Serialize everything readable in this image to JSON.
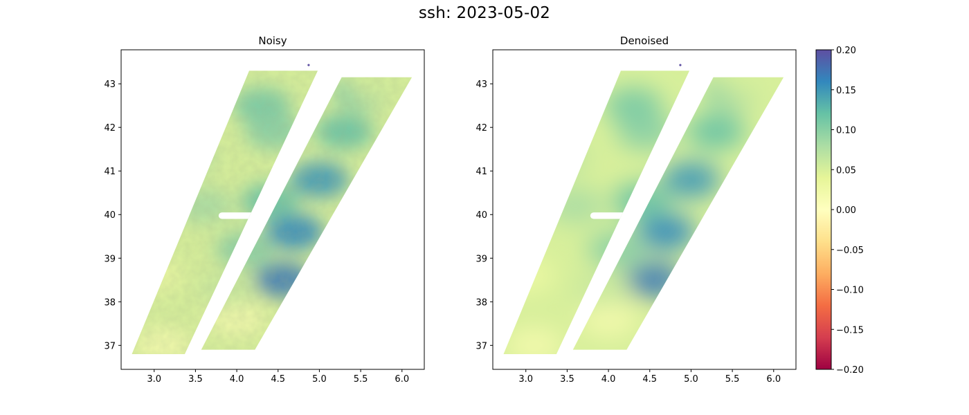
{
  "figure": {
    "suptitle": "ssh: 2023-05-02"
  },
  "colors": {
    "colormap": "Spectral",
    "marker": "#5e4fa2"
  },
  "chart_data": [
    {
      "type": "heatmap",
      "title": "Noisy",
      "xlabel": "",
      "ylabel": "",
      "xlim": [
        2.6,
        6.27
      ],
      "ylim": [
        36.45,
        43.78
      ],
      "xticks": [
        3.0,
        3.5,
        4.0,
        4.5,
        5.0,
        5.5,
        6.0
      ],
      "xtick_labels": [
        "3.0",
        "3.5",
        "4.0",
        "4.5",
        "5.0",
        "5.5",
        "6.0"
      ],
      "yticks": [
        37,
        38,
        39,
        40,
        41,
        42,
        43
      ],
      "ytick_labels": [
        "37",
        "38",
        "39",
        "40",
        "41",
        "42",
        "43"
      ],
      "grid": false,
      "noisy": true,
      "swaths": [
        {
          "name": "left-swath",
          "x0_bottom": 2.73,
          "x1_bottom": 3.37,
          "x0_top": 4.15,
          "x1_top": 4.98,
          "y_bottom": 36.8,
          "y_top": 43.3
        },
        {
          "name": "right-swath",
          "x0_bottom": 3.57,
          "x1_bottom": 4.22,
          "x0_top": 5.27,
          "x1_top": 6.12,
          "y_bottom": 36.9,
          "y_top": 43.15
        }
      ],
      "gap_region": {
        "lon": [
          3.78,
          4.22
        ],
        "lat": [
          39.9,
          40.05
        ]
      },
      "marker_point": {
        "lon": 4.87,
        "lat": 43.43,
        "value": 0.2
      },
      "features": [
        {
          "lon": 5.0,
          "lat": 40.8,
          "value": 0.15
        },
        {
          "lon": 4.7,
          "lat": 39.6,
          "value": 0.16
        },
        {
          "lon": 4.55,
          "lat": 38.5,
          "value": 0.17
        },
        {
          "lon": 5.3,
          "lat": 41.9,
          "value": 0.12
        },
        {
          "lon": 4.3,
          "lat": 42.5,
          "value": 0.11
        },
        {
          "lon": 4.45,
          "lat": 41.9,
          "value": 0.1
        },
        {
          "lon": 5.5,
          "lat": 42.8,
          "value": 0.1
        },
        {
          "lon": 4.1,
          "lat": 39.2,
          "value": 0.1
        },
        {
          "lon": 3.6,
          "lat": 40.2,
          "value": 0.08
        },
        {
          "lon": 3.4,
          "lat": 41.3,
          "value": 0.07
        },
        {
          "lon": 3.0,
          "lat": 38.6,
          "value": 0.03
        },
        {
          "lon": 3.1,
          "lat": 37.0,
          "value": 0.02
        },
        {
          "lon": 4.0,
          "lat": 37.6,
          "value": 0.02
        },
        {
          "lon": 3.9,
          "lat": 38.3,
          "value": 0.06
        },
        {
          "lon": 4.4,
          "lat": 40.3,
          "value": 0.12
        },
        {
          "lon": 5.7,
          "lat": 43.0,
          "value": 0.05
        }
      ]
    },
    {
      "type": "heatmap",
      "title": "Denoised",
      "xlabel": "",
      "ylabel": "",
      "xlim": [
        2.6,
        6.27
      ],
      "ylim": [
        36.45,
        43.78
      ],
      "xticks": [
        3.0,
        3.5,
        4.0,
        4.5,
        5.0,
        5.5,
        6.0
      ],
      "xtick_labels": [
        "3.0",
        "3.5",
        "4.0",
        "4.5",
        "5.0",
        "5.5",
        "6.0"
      ],
      "yticks": [
        37,
        38,
        39,
        40,
        41,
        42,
        43
      ],
      "ytick_labels": [
        "37",
        "38",
        "39",
        "40",
        "41",
        "42",
        "43"
      ],
      "grid": false,
      "noisy": false,
      "swaths": [
        {
          "name": "left-swath",
          "x0_bottom": 2.73,
          "x1_bottom": 3.37,
          "x0_top": 4.15,
          "x1_top": 4.98,
          "y_bottom": 36.8,
          "y_top": 43.3
        },
        {
          "name": "right-swath",
          "x0_bottom": 3.57,
          "x1_bottom": 4.22,
          "x0_top": 5.27,
          "x1_top": 6.12,
          "y_bottom": 36.9,
          "y_top": 43.15
        }
      ],
      "gap_region": {
        "lon": [
          3.78,
          4.22
        ],
        "lat": [
          39.9,
          40.05
        ]
      },
      "marker_point": {
        "lon": 4.87,
        "lat": 43.43,
        "value": 0.2
      },
      "features": [
        {
          "lon": 5.0,
          "lat": 40.8,
          "value": 0.15
        },
        {
          "lon": 4.7,
          "lat": 39.6,
          "value": 0.16
        },
        {
          "lon": 4.55,
          "lat": 38.5,
          "value": 0.17
        },
        {
          "lon": 5.3,
          "lat": 41.9,
          "value": 0.12
        },
        {
          "lon": 4.3,
          "lat": 42.5,
          "value": 0.11
        },
        {
          "lon": 4.45,
          "lat": 41.9,
          "value": 0.1
        },
        {
          "lon": 5.5,
          "lat": 42.8,
          "value": 0.1
        },
        {
          "lon": 4.1,
          "lat": 39.2,
          "value": 0.1
        },
        {
          "lon": 3.6,
          "lat": 40.2,
          "value": 0.08
        },
        {
          "lon": 3.4,
          "lat": 41.3,
          "value": 0.07
        },
        {
          "lon": 3.0,
          "lat": 38.6,
          "value": 0.03
        },
        {
          "lon": 3.1,
          "lat": 37.0,
          "value": 0.02
        },
        {
          "lon": 4.0,
          "lat": 37.6,
          "value": 0.02
        },
        {
          "lon": 3.9,
          "lat": 38.3,
          "value": 0.06
        },
        {
          "lon": 4.4,
          "lat": 40.3,
          "value": 0.12
        },
        {
          "lon": 5.7,
          "lat": 43.0,
          "value": 0.05
        }
      ]
    }
  ],
  "colorbar": {
    "vmin": -0.2,
    "vmax": 0.2,
    "ticks": [
      0.2,
      0.15,
      0.1,
      0.05,
      0.0,
      -0.05,
      -0.1,
      -0.15,
      -0.2
    ],
    "tick_labels": [
      "0.20",
      "0.15",
      "0.10",
      "0.05",
      "0.00",
      "−0.05",
      "−0.10",
      "−0.15",
      "−0.20"
    ]
  }
}
